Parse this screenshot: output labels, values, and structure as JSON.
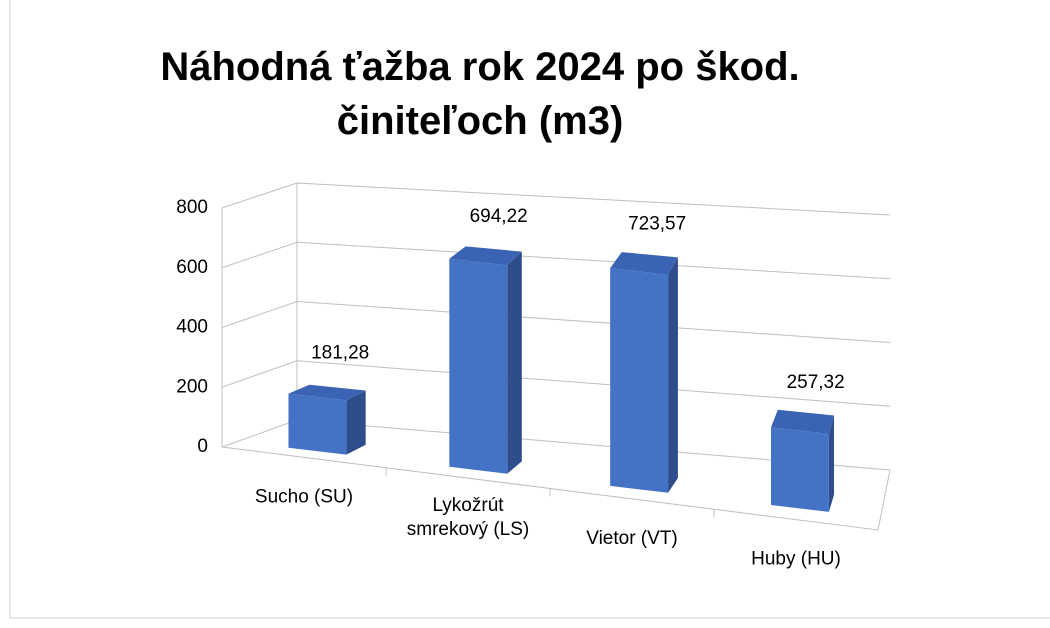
{
  "chart_data": {
    "type": "bar3d",
    "title": "Náhodná ťažba rok 2024 po škod. činiteľoch (m3)",
    "categories": [
      "Sucho (SU)",
      "Lykožrút smrekový (LS)",
      "Vietor (VT)",
      "Huby (HU)"
    ],
    "values": [
      181.28,
      694.22,
      723.57,
      257.32
    ],
    "value_labels": [
      "181,28",
      "694,22",
      "723,57",
      "257,32"
    ],
    "color": "#4472c4",
    "ylim": [
      0,
      800
    ],
    "yticks": [
      0,
      200,
      400,
      600,
      800
    ],
    "grid": true
  }
}
